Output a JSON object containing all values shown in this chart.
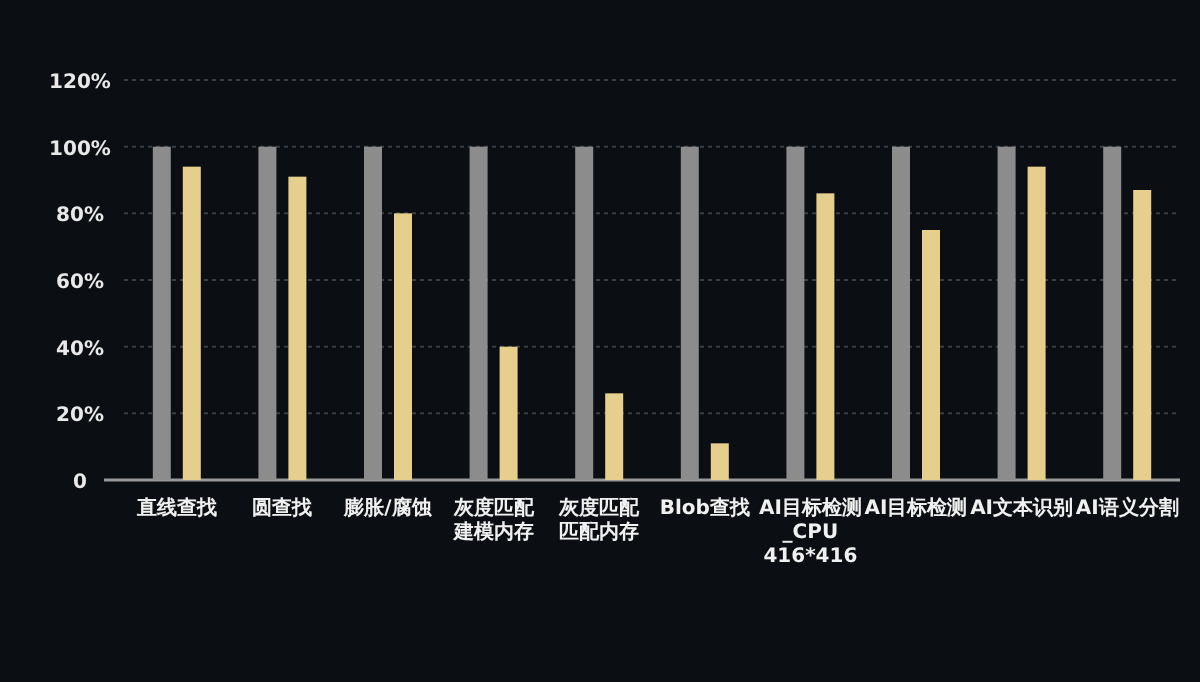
{
  "chart_data": {
    "type": "bar",
    "categories": [
      "直线查找",
      "圆查找",
      "膨胀/腐蚀",
      "灰度匹配建模内存",
      "灰度匹配匹配内存",
      "Blob查找",
      "AI目标检测\n_CPU\n416*416",
      "AI目标检测",
      "AI文本识别",
      "AI语义分割"
    ],
    "series": [
      {
        "color": "#8c8c8c",
        "values": [
          100,
          100,
          100,
          100,
          100,
          100,
          100,
          100,
          100,
          100
        ]
      },
      {
        "color": "#e6cf8c",
        "values": [
          94,
          91,
          80,
          40,
          26,
          11,
          86,
          75,
          94,
          87
        ]
      }
    ],
    "ylim": [
      0,
      120
    ],
    "yticks": [
      {
        "value": 0,
        "label": "0"
      },
      {
        "value": 20,
        "label": "20%"
      },
      {
        "value": 40,
        "label": "40%"
      },
      {
        "value": 60,
        "label": "60%"
      },
      {
        "value": 80,
        "label": "80%"
      },
      {
        "value": 100,
        "label": "100%"
      },
      {
        "value": 120,
        "label": "120%"
      }
    ],
    "grid": "y"
  }
}
